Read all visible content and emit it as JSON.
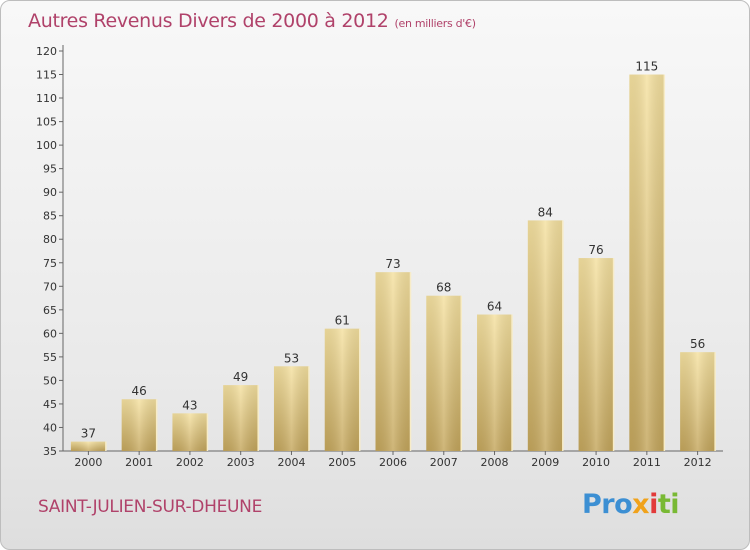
{
  "chart_data": {
    "type": "bar",
    "title": "Autres Revenus Divers de 2000 à 2012",
    "subtitle": "(en milliers d'€)",
    "categories": [
      "2000",
      "2001",
      "2002",
      "2003",
      "2004",
      "2005",
      "2006",
      "2007",
      "2008",
      "2009",
      "2010",
      "2011",
      "2012"
    ],
    "values": [
      37,
      46,
      43,
      49,
      53,
      61,
      73,
      68,
      64,
      84,
      76,
      115,
      56
    ],
    "ylim": [
      35,
      120
    ],
    "yticks": [
      35,
      40,
      45,
      50,
      55,
      60,
      65,
      70,
      75,
      80,
      85,
      90,
      95,
      100,
      105,
      110,
      115,
      120
    ],
    "grid": false,
    "colors": {
      "bar": "#e3c77c",
      "bar_light": "#f2dc98",
      "bar_dark": "#c9ab5e",
      "title": "#b0426a"
    }
  },
  "footer": {
    "place": "SAINT-JULIEN-SUR-DHEUNE"
  },
  "logo": {
    "p1": "Pro",
    "p2": "x",
    "p3": "i",
    "p4": "ti"
  }
}
